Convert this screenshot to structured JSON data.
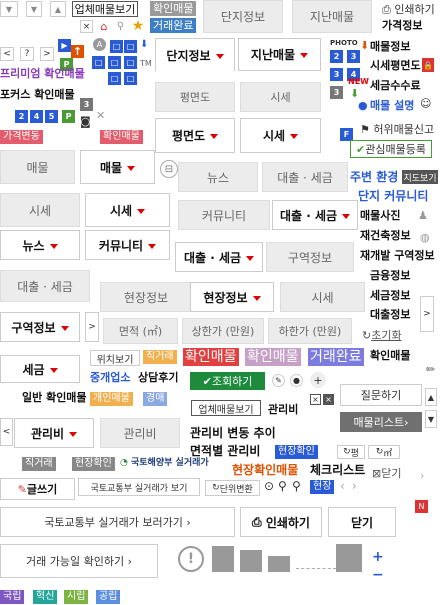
{
  "top": {
    "all_listings": "업체매물보기",
    "confirm": "확인매물",
    "deal_done": "거래완료",
    "print": "인쇄하기",
    "price_info": "가격정보",
    "sell_info": "매물정보",
    "market": "시세평면도",
    "fee": "세금수수료",
    "listing_desc": "매물 설명",
    "report": "허위매물신고",
    "watch": "관심매물등록",
    "new": "NEW",
    "photo": "PHOTO"
  },
  "tabs": {
    "danji": "단지정보",
    "past": "지난매물",
    "danji2": "단지정보",
    "past2": "지난매물",
    "floor": "평면도",
    "price": "시세",
    "floor2": "평면도",
    "price2": "시세",
    "listing": "매물",
    "listing2": "매물",
    "news": "뉴스",
    "loan": "대출 · 세금",
    "price3": "시세",
    "price4": "시세",
    "community": "커뮤니티",
    "loan2": "대출 · 세금",
    "news2": "뉴스",
    "community2": "커뮤니티",
    "loan3": "대출 · 세금",
    "region": "구역정보",
    "loan4": "대출 · 세금",
    "site": "현장정보",
    "site2": "현장정보",
    "price5": "시세",
    "region2": "구역정보",
    "tax": "세금",
    "mgmt": "관리비",
    "mgmt2": "관리비"
  },
  "left": {
    "premium": "프리미엄 확인매물",
    "focus": "포커스 확인매물",
    "price_change": "가격변동",
    "confirm2": "확인매물",
    "general": "일반 확인매물"
  },
  "right": {
    "main_env": "주변 환경",
    "map": "지도보기",
    "danji_comm": "단지 커뮤니티",
    "photo": "매물사진",
    "recon": "재건축정보",
    "redevel": "재개발 구역정보",
    "fin": "금융정보",
    "tax": "세금정보",
    "loan": "대출정보",
    "reset": "초기화"
  },
  "filter": {
    "area": "면적 (㎡)",
    "max": "상한가 (만원)",
    "min": "하한가 (만원)"
  },
  "labels": {
    "location": "위치보기",
    "direct": "직거래",
    "confirm_a": "확인매물",
    "confirm_b": "확인매물",
    "deal": "거래완료",
    "confirm_c": "확인매물",
    "agent": "중개업소",
    "consult": "상담후기",
    "view": "조회하기",
    "agent_list": "업체매물보기",
    "mgmt": "관리비",
    "personal": "개인매물",
    "auction": "경매",
    "mgmt_trend": "관리비 변동 추이",
    "area_mgmt": "면적별 관리비",
    "site_confirm": "현장확인",
    "direct2": "직거래",
    "site_confirm2": "현장확인",
    "molit": "국토해양부 실거래가",
    "site_listing": "현장확인매물",
    "checklist": "체크리스트",
    "close": "닫기",
    "question": "질문하기",
    "listing_list": "매물리스트",
    "pyeong": "평",
    "m2": "㎡",
    "write": "글쓰기",
    "molit2": "국토교통부 실거래가 보기",
    "unit": "단위변환",
    "site": "현장",
    "molit3": "국토교통부 실거래가 보러가기",
    "print2": "인쇄하기",
    "close2": "닫기",
    "avail": "거래 가능일 확인하기"
  },
  "legend": {
    "national": "국립",
    "innov": "혁신",
    "city": "시립",
    "public": "공립"
  }
}
